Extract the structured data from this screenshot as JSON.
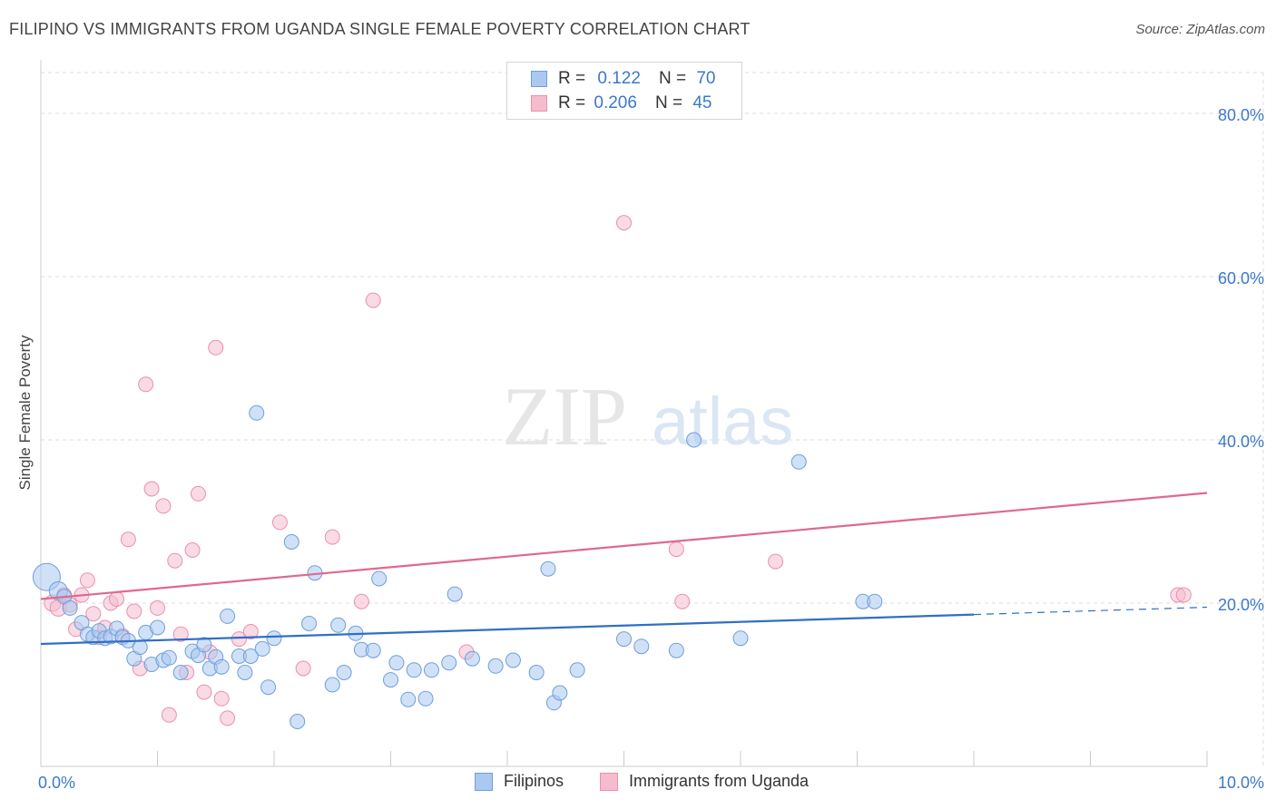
{
  "title": "FILIPINO VS IMMIGRANTS FROM UGANDA SINGLE FEMALE POVERTY CORRELATION CHART",
  "source": "Source: ZipAtlas.com",
  "watermark": {
    "zip": "ZIP",
    "atlas": "atlas"
  },
  "legend_top": [
    {
      "r_label": "R =",
      "r_value": "0.122",
      "n_label": "N =",
      "n_value": "70"
    },
    {
      "r_label": "R =",
      "r_value": "0.206",
      "n_label": "N =",
      "n_value": "45"
    }
  ],
  "colors": {
    "filipinos_fill": "#aac8f0",
    "filipinos_stroke": "#6e9fd8",
    "filipinos_line": "#2f6fc8",
    "uganda_fill": "#f6bccd",
    "uganda_stroke": "#e891ad",
    "uganda_line": "#e06890",
    "tick_label": "#3c78c8",
    "grid": "#dddddd"
  },
  "chart_data": {
    "type": "scatter",
    "title": "FILIPINO VS IMMIGRANTS FROM UGANDA SINGLE FEMALE POVERTY CORRELATION CHART",
    "xlabel": "",
    "ylabel": "Single Female Poverty",
    "xlim": [
      0,
      10
    ],
    "ylim": [
      0,
      85
    ],
    "x_tick_labels": [
      "0.0%",
      "10.0%"
    ],
    "y_ticks": [
      20,
      40,
      60,
      80
    ],
    "y_tick_labels": [
      "20.0%",
      "40.0%",
      "60.0%",
      "80.0%"
    ],
    "grid": true,
    "legend_position": "bottom",
    "series": [
      {
        "name": "Filipinos",
        "r": 0.122,
        "n": 70,
        "trend": {
          "x": [
            0,
            8.0
          ],
          "y": [
            15.0,
            18.6
          ],
          "dashed_to": [
            10.0,
            19.5
          ]
        },
        "points": [
          [
            0.05,
            23.2,
            14
          ],
          [
            0.15,
            21.5,
            9
          ],
          [
            0.2,
            20.8,
            7
          ],
          [
            0.25,
            19.4,
            7
          ],
          [
            0.35,
            17.6,
            7
          ],
          [
            0.4,
            16.2,
            7
          ],
          [
            0.45,
            15.8,
            7
          ],
          [
            0.5,
            16.6,
            7
          ],
          [
            0.55,
            15.7,
            7
          ],
          [
            0.6,
            15.9,
            7
          ],
          [
            0.65,
            16.9,
            7
          ],
          [
            0.7,
            15.8,
            7
          ],
          [
            0.75,
            15.4,
            7
          ],
          [
            0.8,
            13.2,
            7
          ],
          [
            0.85,
            14.6,
            7
          ],
          [
            0.9,
            16.4,
            7
          ],
          [
            0.95,
            12.5,
            7
          ],
          [
            1.0,
            17.0,
            7
          ],
          [
            1.05,
            13.0,
            7
          ],
          [
            1.1,
            13.3,
            7
          ],
          [
            1.2,
            11.5,
            7
          ],
          [
            1.3,
            14.1,
            7
          ],
          [
            1.35,
            13.6,
            7
          ],
          [
            1.4,
            14.9,
            7
          ],
          [
            1.45,
            12.0,
            7
          ],
          [
            1.5,
            13.4,
            7
          ],
          [
            1.55,
            12.2,
            7
          ],
          [
            1.6,
            18.4,
            7
          ],
          [
            1.7,
            13.5,
            7
          ],
          [
            1.75,
            11.5,
            7
          ],
          [
            1.8,
            13.5,
            7
          ],
          [
            1.85,
            43.3,
            7
          ],
          [
            1.9,
            14.4,
            7
          ],
          [
            1.95,
            9.7,
            7
          ],
          [
            2.0,
            15.7,
            7
          ],
          [
            2.15,
            27.5,
            7
          ],
          [
            2.2,
            5.5,
            7
          ],
          [
            2.3,
            17.5,
            7
          ],
          [
            2.35,
            23.7,
            7
          ],
          [
            2.5,
            10.0,
            7
          ],
          [
            2.55,
            17.3,
            7
          ],
          [
            2.6,
            11.5,
            7
          ],
          [
            2.7,
            16.3,
            7
          ],
          [
            2.75,
            14.3,
            7
          ],
          [
            2.85,
            14.2,
            7
          ],
          [
            2.9,
            23.0,
            7
          ],
          [
            3.0,
            10.6,
            7
          ],
          [
            3.05,
            12.7,
            7
          ],
          [
            3.15,
            8.2,
            7
          ],
          [
            3.2,
            11.8,
            7
          ],
          [
            3.3,
            8.3,
            7
          ],
          [
            3.35,
            11.8,
            7
          ],
          [
            3.5,
            12.7,
            7
          ],
          [
            3.55,
            21.1,
            7
          ],
          [
            3.7,
            13.2,
            7
          ],
          [
            3.9,
            12.3,
            7
          ],
          [
            4.05,
            13.0,
            7
          ],
          [
            4.25,
            11.5,
            7
          ],
          [
            4.35,
            24.2,
            7
          ],
          [
            4.4,
            7.8,
            7
          ],
          [
            4.45,
            9.0,
            7
          ],
          [
            4.6,
            11.8,
            7
          ],
          [
            5.0,
            15.6,
            7
          ],
          [
            5.15,
            14.7,
            7
          ],
          [
            5.45,
            14.2,
            7
          ],
          [
            5.6,
            40.0,
            7
          ],
          [
            6.0,
            15.7,
            7
          ],
          [
            6.5,
            37.3,
            7
          ],
          [
            7.05,
            20.2,
            7
          ],
          [
            7.15,
            20.2,
            7
          ]
        ]
      },
      {
        "name": "Immigrants from Uganda",
        "r": 0.206,
        "n": 45,
        "trend": {
          "x": [
            0,
            10.0
          ],
          "y": [
            20.5,
            33.5
          ]
        },
        "points": [
          [
            0.1,
            20.0,
            8
          ],
          [
            0.15,
            19.4,
            8
          ],
          [
            0.2,
            21.0,
            7
          ],
          [
            0.25,
            19.8,
            7
          ],
          [
            0.3,
            16.8,
            7
          ],
          [
            0.35,
            21.0,
            7
          ],
          [
            0.4,
            22.8,
            7
          ],
          [
            0.45,
            18.7,
            7
          ],
          [
            0.5,
            15.8,
            7
          ],
          [
            0.55,
            17.0,
            7
          ],
          [
            0.6,
            20.0,
            7
          ],
          [
            0.65,
            20.5,
            7
          ],
          [
            0.7,
            16.0,
            7
          ],
          [
            0.75,
            27.8,
            7
          ],
          [
            0.8,
            19.0,
            7
          ],
          [
            0.85,
            12.0,
            7
          ],
          [
            0.9,
            46.8,
            7
          ],
          [
            0.95,
            34.0,
            7
          ],
          [
            1.0,
            19.4,
            7
          ],
          [
            1.05,
            31.9,
            7
          ],
          [
            1.1,
            6.3,
            7
          ],
          [
            1.15,
            25.2,
            7
          ],
          [
            1.2,
            16.2,
            7
          ],
          [
            1.25,
            11.5,
            7
          ],
          [
            1.3,
            26.5,
            7
          ],
          [
            1.35,
            33.4,
            7
          ],
          [
            1.4,
            9.1,
            7
          ],
          [
            1.45,
            14.0,
            7
          ],
          [
            1.5,
            51.3,
            7
          ],
          [
            1.55,
            8.3,
            7
          ],
          [
            1.6,
            5.9,
            7
          ],
          [
            1.7,
            15.6,
            7
          ],
          [
            1.8,
            16.5,
            7
          ],
          [
            2.05,
            29.9,
            7
          ],
          [
            2.25,
            12.0,
            7
          ],
          [
            2.5,
            28.1,
            7
          ],
          [
            2.75,
            20.2,
            7
          ],
          [
            2.85,
            57.1,
            7
          ],
          [
            3.65,
            14.0,
            7
          ],
          [
            5.0,
            66.6,
            7
          ],
          [
            5.45,
            26.6,
            7
          ],
          [
            5.5,
            20.2,
            7
          ],
          [
            6.3,
            25.1,
            7
          ],
          [
            9.75,
            21.0,
            7
          ],
          [
            9.8,
            21.0,
            7
          ]
        ]
      }
    ]
  }
}
